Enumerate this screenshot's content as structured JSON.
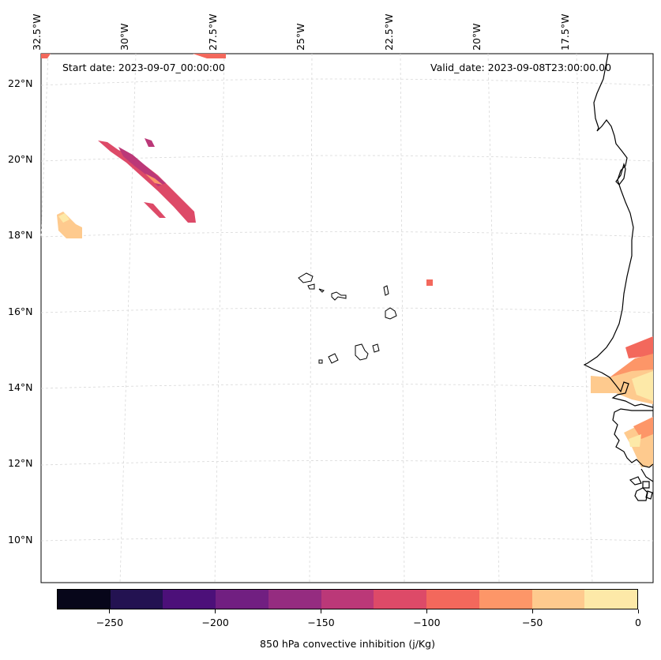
{
  "map": {
    "start_date": "Start date: 2023-09-07_00:00:00",
    "valid_date": "Valid_date: 2023-09-08T23:00:00.00",
    "lon_labels": [
      "32.5°W",
      "30°W",
      "27.5°W",
      "25°W",
      "22.5°W",
      "20°W",
      "17.5°W"
    ],
    "lat_labels": [
      "22°N",
      "20°N",
      "18°N",
      "16°N",
      "14°N",
      "12°N",
      "10°N"
    ],
    "gridlines": true
  },
  "colorbar": {
    "title": "850 hPa convective inhibition (j/Kg)",
    "tick_labels": [
      "−250",
      "−200",
      "−150",
      "−100",
      "−50",
      "0"
    ],
    "range": [
      -275,
      0
    ],
    "colors": [
      "#07061a",
      "#231251",
      "#4c1079",
      "#711f81",
      "#952c80",
      "#bb3878",
      "#dd4a68",
      "#f3685c",
      "#fd9668",
      "#feca8e",
      "#fde9a8"
    ]
  }
}
